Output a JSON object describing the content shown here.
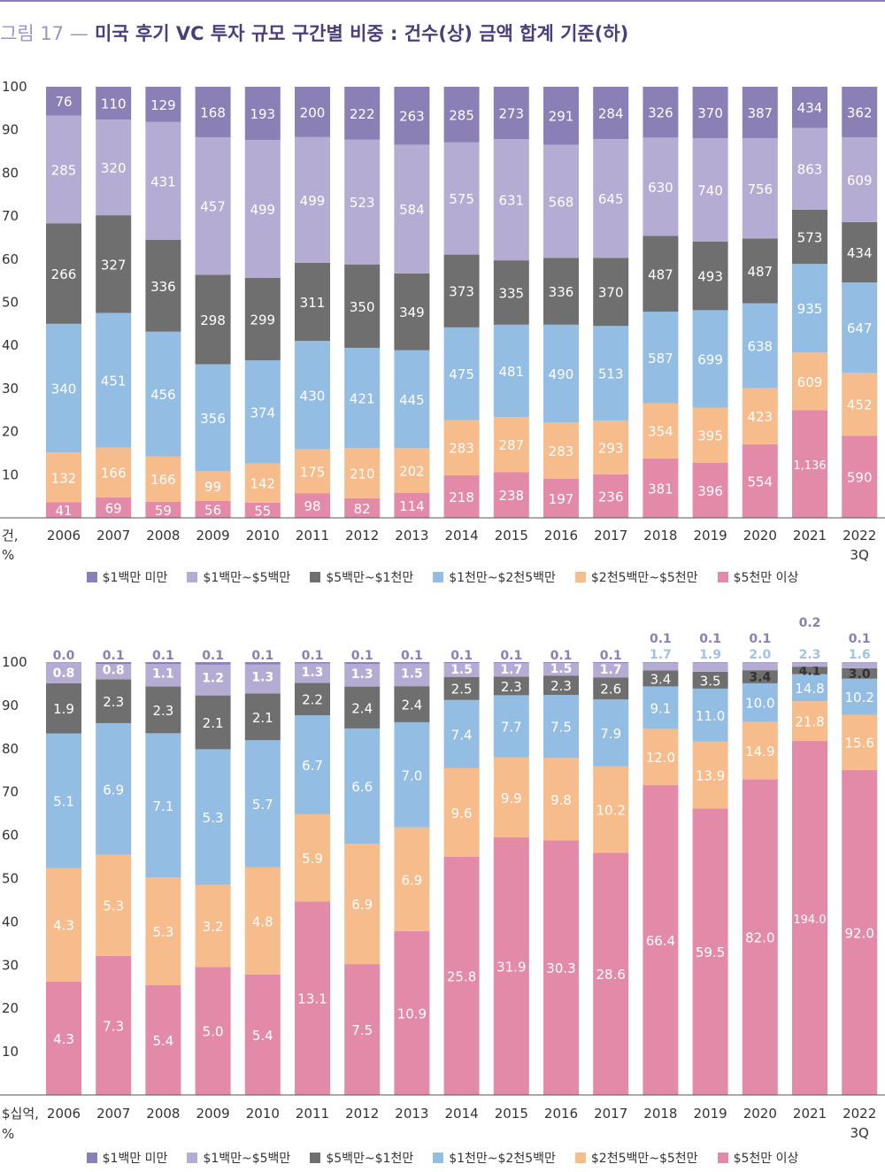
{
  "figure": {
    "label": "그림 17 —",
    "title": "미국 후기 VC 투자 규모 구간별 비중 : 건수(상) 금액 합계 기준(하)"
  },
  "colors": {
    "s1": "#8b80b6",
    "s2": "#b5acd3",
    "s3": "#6f6f6f",
    "s4": "#93bde3",
    "s5": "#f7bc8b",
    "s6": "#e28aa8",
    "small_label": "#8b80b6",
    "small_label_alt": "#9fc3e6"
  },
  "legend": [
    {
      "key": "s1",
      "label": "$1백만 미만"
    },
    {
      "key": "s2",
      "label": "$1백만~$5백만"
    },
    {
      "key": "s3",
      "label": "$5백만~$1천만"
    },
    {
      "key": "s4",
      "label": "$1천만~$2천5백만"
    },
    {
      "key": "s5",
      "label": "$2천5백만~$5천만"
    },
    {
      "key": "s6",
      "label": "$5천만 이상"
    }
  ],
  "chart_data": [
    {
      "type": "bar",
      "stacked": "percent",
      "unit_label": [
        "건,",
        "%"
      ],
      "categories": [
        "2006",
        "2007",
        "2008",
        "2009",
        "2010",
        "2011",
        "2012",
        "2013",
        "2014",
        "2015",
        "2016",
        "2017",
        "2018",
        "2019",
        "2020",
        "2021",
        "2022\n3Q"
      ],
      "ylim": [
        0,
        100
      ],
      "yticks": [
        10,
        20,
        30,
        40,
        50,
        60,
        70,
        80,
        90,
        100
      ],
      "series": [
        {
          "name": "$5천만 이상",
          "color_key": "s6",
          "values": [
            41,
            69,
            59,
            56,
            55,
            98,
            82,
            114,
            218,
            238,
            197,
            236,
            381,
            396,
            554,
            1136,
            590
          ],
          "labels": [
            "41",
            "69",
            "59",
            "56",
            "55",
            "98",
            "82",
            "114",
            "218",
            "238",
            "197",
            "236",
            "381",
            "396",
            "554",
            "1,136",
            "590"
          ]
        },
        {
          "name": "$2천5백만~$5천만",
          "color_key": "s5",
          "values": [
            132,
            166,
            166,
            99,
            142,
            175,
            210,
            202,
            283,
            287,
            283,
            293,
            354,
            395,
            423,
            609,
            452
          ],
          "labels": [
            "132",
            "166",
            "166",
            "99",
            "142",
            "175",
            "210",
            "202",
            "283",
            "287",
            "283",
            "293",
            "354",
            "395",
            "423",
            "609",
            "452"
          ]
        },
        {
          "name": "$1천만~$2천5백만",
          "color_key": "s4",
          "values": [
            340,
            451,
            456,
            356,
            374,
            430,
            421,
            445,
            475,
            481,
            490,
            513,
            587,
            699,
            638,
            935,
            647
          ],
          "labels": [
            "340",
            "451",
            "456",
            "356",
            "374",
            "430",
            "421",
            "445",
            "475",
            "481",
            "490",
            "513",
            "587",
            "699",
            "638",
            "935",
            "647"
          ]
        },
        {
          "name": "$5백만~$1천만",
          "color_key": "s3",
          "values": [
            266,
            327,
            336,
            298,
            299,
            311,
            350,
            349,
            373,
            335,
            336,
            370,
            487,
            493,
            487,
            573,
            434
          ],
          "labels": [
            "266",
            "327",
            "336",
            "298",
            "299",
            "311",
            "350",
            "349",
            "373",
            "335",
            "336",
            "370",
            "487",
            "493",
            "487",
            "573",
            "434"
          ]
        },
        {
          "name": "$1백만~$5백만",
          "color_key": "s2",
          "values": [
            285,
            320,
            431,
            457,
            499,
            499,
            523,
            584,
            575,
            631,
            568,
            645,
            630,
            740,
            756,
            863,
            609
          ],
          "labels": [
            "285",
            "320",
            "431",
            "457",
            "499",
            "499",
            "523",
            "584",
            "575",
            "631",
            "568",
            "645",
            "630",
            "740",
            "756",
            "863",
            "609"
          ]
        },
        {
          "name": "$1백만 미만",
          "color_key": "s1",
          "values": [
            76,
            110,
            129,
            168,
            193,
            200,
            222,
            263,
            285,
            273,
            291,
            284,
            326,
            370,
            387,
            434,
            362
          ],
          "labels": [
            "76",
            "110",
            "129",
            "168",
            "193",
            "200",
            "222",
            "263",
            "285",
            "273",
            "291",
            "284",
            "326",
            "370",
            "387",
            "434",
            "362"
          ]
        }
      ]
    },
    {
      "type": "bar",
      "stacked": "percent",
      "unit_label": [
        "$십억,",
        "%"
      ],
      "categories": [
        "2006",
        "2007",
        "2008",
        "2009",
        "2010",
        "2011",
        "2012",
        "2013",
        "2014",
        "2015",
        "2016",
        "2017",
        "2018",
        "2019",
        "2020",
        "2021",
        "2022\n3Q"
      ],
      "ylim": [
        0,
        100
      ],
      "yticks": [
        10,
        20,
        30,
        40,
        50,
        60,
        70,
        80,
        90,
        100
      ],
      "series": [
        {
          "name": "$5천만 이상",
          "color_key": "s6",
          "values": [
            4.3,
            7.3,
            5.4,
            5.0,
            5.4,
            13.1,
            7.5,
            10.9,
            25.8,
            31.9,
            30.3,
            28.6,
            66.4,
            59.5,
            82.0,
            194.0,
            92.0
          ],
          "labels": [
            "4.3",
            "7.3",
            "5.4",
            "5.0",
            "5.4",
            "13.1",
            "7.5",
            "10.9",
            "25.8",
            "31.9",
            "30.3",
            "28.6",
            "66.4",
            "59.5",
            "82.0",
            "194.0",
            "92.0"
          ]
        },
        {
          "name": "$2천5백만~$5천만",
          "color_key": "s5",
          "values": [
            4.3,
            5.3,
            5.3,
            3.2,
            4.8,
            5.9,
            6.9,
            6.9,
            9.6,
            9.9,
            9.8,
            10.2,
            12.0,
            13.9,
            14.9,
            21.8,
            15.6
          ],
          "labels": [
            "4.3",
            "5.3",
            "5.3",
            "3.2",
            "4.8",
            "5.9",
            "6.9",
            "6.9",
            "9.6",
            "9.9",
            "9.8",
            "10.2",
            "12.0",
            "13.9",
            "14.9",
            "21.8",
            "15.6"
          ]
        },
        {
          "name": "$1천만~$2천5백만",
          "color_key": "s4",
          "values": [
            5.1,
            6.9,
            7.1,
            5.3,
            5.7,
            6.7,
            6.6,
            7.0,
            7.4,
            7.7,
            7.5,
            7.9,
            9.1,
            11.0,
            10.0,
            14.8,
            10.2
          ],
          "labels": [
            "5.1",
            "6.9",
            "7.1",
            "5.3",
            "5.7",
            "6.7",
            "6.6",
            "7.0",
            "7.4",
            "7.7",
            "7.5",
            "7.9",
            "9.1",
            "11.0",
            "10.0",
            "14.8",
            "10.2"
          ]
        },
        {
          "name": "$5백만~$1천만",
          "color_key": "s3",
          "values": [
            1.9,
            2.3,
            2.3,
            2.1,
            2.1,
            2.2,
            2.4,
            2.4,
            2.5,
            2.3,
            2.3,
            2.6,
            3.4,
            3.5,
            3.4,
            4.1,
            3.0
          ],
          "labels": [
            "1.9",
            "2.3",
            "2.3",
            "2.1",
            "2.1",
            "2.2",
            "2.4",
            "2.4",
            "2.5",
            "2.3",
            "2.3",
            "2.6",
            "3.4",
            "3.5",
            "3.4",
            "4.1",
            "3.0"
          ]
        },
        {
          "name": "$1백만~$5백만",
          "color_key": "s2",
          "values": [
            0.8,
            0.8,
            1.1,
            1.2,
            1.3,
            1.3,
            1.3,
            1.5,
            1.5,
            1.7,
            1.5,
            1.7,
            1.7,
            1.9,
            2.0,
            2.3,
            1.6
          ],
          "labels": [
            "0.8",
            "0.8",
            "1.1",
            "1.2",
            "1.3",
            "1.3",
            "1.3",
            "1.5",
            "1.5",
            "1.7",
            "1.5",
            "1.7",
            "1.7",
            "1.9",
            "2.0",
            "2.3",
            "1.6"
          ]
        },
        {
          "name": "$1백만 미만",
          "color_key": "s1",
          "values": [
            0.0,
            0.1,
            0.1,
            0.1,
            0.1,
            0.1,
            0.1,
            0.1,
            0.1,
            0.1,
            0.1,
            0.1,
            0.1,
            0.1,
            0.1,
            0.2,
            0.1
          ],
          "labels": [
            "0.0",
            "0.1",
            "0.1",
            "0.1",
            "0.1",
            "0.1",
            "0.1",
            "0.1",
            "0.1",
            "0.1",
            "0.1",
            "0.1",
            "0.1",
            "0.1",
            "0.1",
            "0.2",
            "0.1"
          ]
        }
      ]
    }
  ]
}
